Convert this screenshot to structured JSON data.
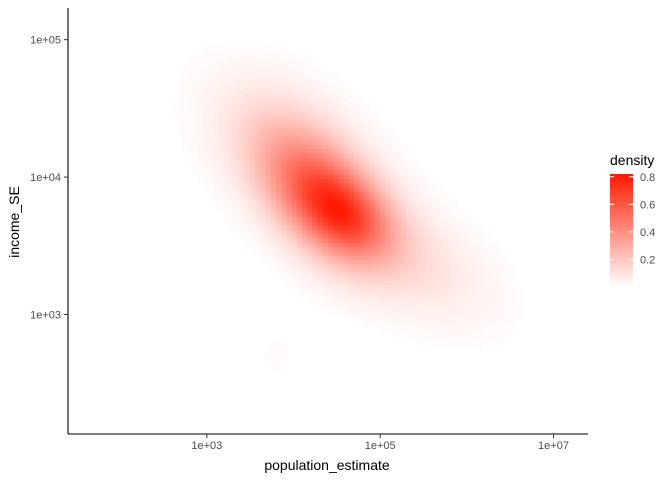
{
  "chart_data": {
    "type": "heatmap",
    "xlabel": "population_estimate",
    "ylabel": "income_SE",
    "x_scale": "log10",
    "y_scale": "log10",
    "xlim": [
      25,
      25000000
    ],
    "ylim": [
      135,
      170000
    ],
    "x_ticks": [
      {
        "value": 1000,
        "label": "1e+03"
      },
      {
        "value": 100000,
        "label": "1e+05"
      },
      {
        "value": 10000000,
        "label": "1e+07"
      }
    ],
    "y_ticks": [
      {
        "value": 1000,
        "label": "1e+03"
      },
      {
        "value": 10000,
        "label": "1e+04"
      },
      {
        "value": 100000,
        "label": "1e+05"
      }
    ],
    "grid": false,
    "legend": {
      "title": "density",
      "position": "right",
      "breaks": [
        {
          "value": 0.2,
          "label": "0.2"
        },
        {
          "value": 0.4,
          "label": "0.4"
        },
        {
          "value": 0.6,
          "label": "0.6"
        },
        {
          "value": 0.8,
          "label": "0.8"
        }
      ],
      "range": [
        0,
        0.82
      ],
      "low_color": "#ffffff",
      "high_color": "#ff1a00"
    },
    "density_components": [
      {
        "x_log10": 4.35,
        "y_log10": 3.85,
        "sd_x": 0.5,
        "sd_y": 0.33,
        "rho": -0.5,
        "weight": 0.6
      },
      {
        "x_log10": 4.6,
        "y_log10": 3.72,
        "sd_x": 0.35,
        "sd_y": 0.2,
        "rho": -0.3,
        "weight": 0.28
      },
      {
        "x_log10": 3.9,
        "y_log10": 4.25,
        "sd_x": 0.6,
        "sd_y": 0.35,
        "rho": -0.4,
        "weight": 0.12
      },
      {
        "x_log10": 5.2,
        "y_log10": 3.5,
        "sd_x": 0.6,
        "sd_y": 0.3,
        "rho": -0.5,
        "weight": 0.1
      },
      {
        "x_log10": 3.8,
        "y_log10": 2.7,
        "sd_x": 0.3,
        "sd_y": 0.25,
        "rho": 0.0,
        "weight": 0.015
      },
      {
        "x_log10": 5.8,
        "y_log10": 3.2,
        "sd_x": 0.5,
        "sd_y": 0.3,
        "rho": -0.3,
        "weight": 0.03
      }
    ],
    "density_peak": 0.82,
    "grid_resolution": [
      100,
      100
    ]
  }
}
